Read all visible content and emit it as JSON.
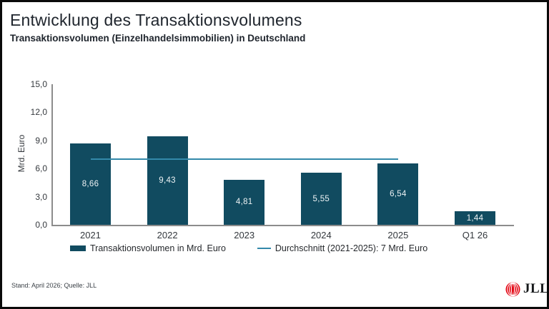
{
  "header": {
    "title": "Entwicklung des Transaktionsvolumens",
    "subtitle": "Transaktionsvolumen (Einzelhandelsimmobilien) in Deutschland"
  },
  "chart_data": {
    "type": "bar",
    "title": "Entwicklung des Transaktionsvolumens",
    "subtitle": "Transaktionsvolumen (Einzelhandelsimmobilien) in Deutschland",
    "categories": [
      "2021",
      "2022",
      "2023",
      "2024",
      "2025",
      "Q1 26"
    ],
    "values": [
      8.66,
      9.43,
      4.81,
      5.55,
      6.54,
      1.44
    ],
    "value_labels": [
      "8,66",
      "9,43",
      "4,81",
      "5,55",
      "6,54",
      "1,44"
    ],
    "xlabel": "",
    "ylabel": "Mrd. Euro",
    "ylim": [
      0,
      15
    ],
    "yticks": [
      0,
      3,
      6,
      9,
      12,
      15
    ],
    "ytick_labels": [
      "0,0",
      "3,0",
      "6,0",
      "9,0",
      "12,0",
      "15,0"
    ],
    "grid": false,
    "legend_position": "bottom",
    "average_line": {
      "value": 7,
      "spans_categories": [
        "2021",
        "2025"
      ],
      "label": "Durchschnitt (2021-2025): 7 Mrd. Euro"
    },
    "legend": [
      {
        "swatch": "bar",
        "label": "Transaktionsvolumen in Mrd. Euro",
        "color": "#114b60"
      },
      {
        "swatch": "line",
        "label": "Durchschnitt (2021-2025): 7 Mrd. Euro",
        "color": "#3389aa"
      }
    ]
  },
  "colors": {
    "bar": "#114b60",
    "average_line": "#3389aa",
    "axis": "#8c8c8c",
    "logo_red": "#e30613",
    "text_dark": "#20262e"
  },
  "footer": {
    "source_note": "Stand: April 2026; Quelle: JLL",
    "logo_text": "JLL"
  }
}
